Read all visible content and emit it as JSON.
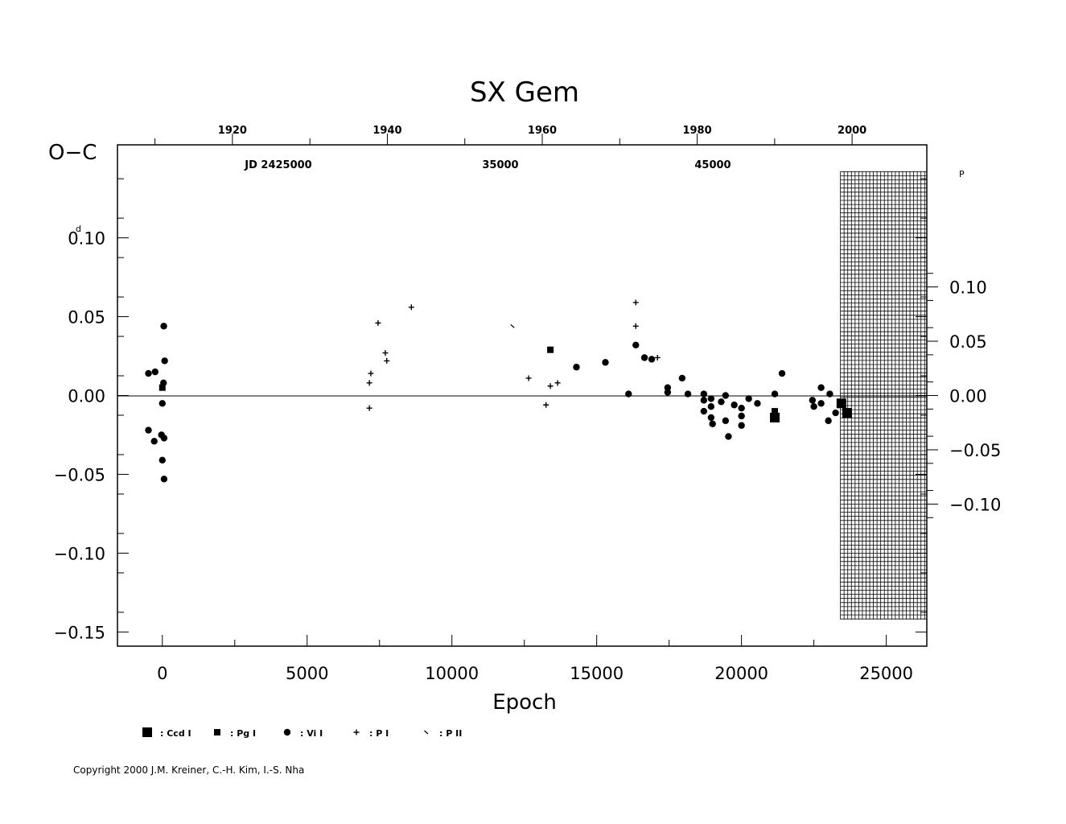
{
  "title": "SX  Gem",
  "y_axis_label": "O−C",
  "y_unit_mark": "d",
  "right_unit_mark": "P",
  "x_axis_label": "Epoch",
  "jd_labels": [
    {
      "text": "JD  2425000",
      "jd": 2425000
    },
    {
      "text": "35000",
      "jd": 2435000
    },
    {
      "text": "45000",
      "jd": 2445000
    }
  ],
  "year_labels": [
    "1920",
    "1940",
    "1960",
    "1980",
    "2000"
  ],
  "copyright": "Copyright 2000 J.M. Kreiner, C.-H. Kim, I.-S. Nha",
  "legend": [
    {
      "symbol": "square-large",
      "label": ": Ccd  I"
    },
    {
      "symbol": "square-small",
      "label": ": Pg  I"
    },
    {
      "symbol": "circle",
      "label": ": Vi  I"
    },
    {
      "symbol": "plus",
      "label": ": P  I"
    },
    {
      "symbol": "slash",
      "label": ": P  II"
    }
  ],
  "chart_data": {
    "type": "scatter",
    "title": "SX  Gem",
    "xlabel": "Epoch",
    "ylabel": "O−C",
    "xlim": [
      -1550,
      26400
    ],
    "ylim": [
      -0.159,
      0.159
    ],
    "x_ticks": [
      "0",
      "5000",
      "10000",
      "15000",
      "20000",
      "25000"
    ],
    "y_ticks": [
      "0.10",
      "0.05",
      "0.00",
      "−0.05",
      "−0.10",
      "−0.15"
    ],
    "y2_ticks": [
      "0.10",
      "0.05",
      "0.00",
      "−0.05",
      "−0.10"
    ],
    "y2_values": [
      0.1,
      0.05,
      0.0,
      -0.05,
      -0.1
    ],
    "y2_factor": 1.452,
    "year_axis": {
      "years": [
        1920,
        1940,
        1960,
        1980,
        2000
      ],
      "epoch_at_year": [
        2420,
        7770,
        13120,
        18470,
        23820
      ]
    },
    "zero_line": true,
    "hatched_region": {
      "x_start": 23500,
      "x_end": 26400,
      "y_min": -0.142,
      "y_max": 0.142
    },
    "series": [
      {
        "name": ": Ccd  I",
        "marker": "square-large",
        "points": [
          [
            21150,
            -0.014
          ],
          [
            23450,
            -0.005
          ],
          [
            23650,
            -0.011
          ]
        ]
      },
      {
        "name": ": Pg  I",
        "marker": "square-small",
        "points": [
          [
            0,
            0.005
          ],
          [
            13400,
            0.029
          ],
          [
            21150,
            -0.01
          ]
        ]
      },
      {
        "name": ": Vi  I",
        "marker": "circle",
        "points": [
          [
            -480,
            0.014
          ],
          [
            -250,
            0.015
          ],
          [
            -480,
            -0.022
          ],
          [
            -280,
            -0.029
          ],
          [
            50,
            0.044
          ],
          [
            80,
            0.022
          ],
          [
            40,
            0.008
          ],
          [
            0,
            -0.005
          ],
          [
            -30,
            -0.025
          ],
          [
            60,
            -0.027
          ],
          [
            0,
            -0.041
          ],
          [
            60,
            -0.053
          ],
          [
            14300,
            0.018
          ],
          [
            15300,
            0.021
          ],
          [
            16100,
            0.001
          ],
          [
            16350,
            0.032
          ],
          [
            16650,
            0.024
          ],
          [
            16900,
            0.023
          ],
          [
            17450,
            0.005
          ],
          [
            17450,
            0.002
          ],
          [
            17950,
            0.011
          ],
          [
            18150,
            0.001
          ],
          [
            18700,
            0.001
          ],
          [
            18700,
            -0.003
          ],
          [
            18700,
            -0.01
          ],
          [
            18950,
            -0.002
          ],
          [
            18950,
            -0.014
          ],
          [
            19000,
            -0.018
          ],
          [
            18950,
            -0.007
          ],
          [
            19300,
            -0.004
          ],
          [
            19450,
            0.0
          ],
          [
            19450,
            -0.016
          ],
          [
            19550,
            -0.026
          ],
          [
            19750,
            -0.006
          ],
          [
            20000,
            -0.008
          ],
          [
            20000,
            -0.013
          ],
          [
            20000,
            -0.019
          ],
          [
            20250,
            -0.002
          ],
          [
            20550,
            -0.005
          ],
          [
            21150,
            0.001
          ],
          [
            21400,
            0.014
          ],
          [
            22450,
            -0.003
          ],
          [
            22500,
            -0.007
          ],
          [
            22750,
            -0.005
          ],
          [
            22750,
            0.005
          ],
          [
            23050,
            0.001
          ],
          [
            23000,
            -0.016
          ],
          [
            23250,
            -0.011
          ]
        ]
      },
      {
        "name": ": P  I",
        "marker": "plus",
        "points": [
          [
            7150,
            -0.008
          ],
          [
            7150,
            0.008
          ],
          [
            7200,
            0.014
          ],
          [
            7450,
            0.046
          ],
          [
            7700,
            0.027
          ],
          [
            7750,
            0.022
          ],
          [
            8600,
            0.056
          ],
          [
            12650,
            0.011
          ],
          [
            13250,
            -0.006
          ],
          [
            13400,
            0.006
          ],
          [
            13650,
            0.008
          ],
          [
            16350,
            0.059
          ],
          [
            16350,
            0.044
          ],
          [
            17100,
            0.024
          ]
        ]
      },
      {
        "name": ": P  II",
        "marker": "slash",
        "points": [
          [
            12100,
            0.044
          ]
        ]
      }
    ]
  }
}
